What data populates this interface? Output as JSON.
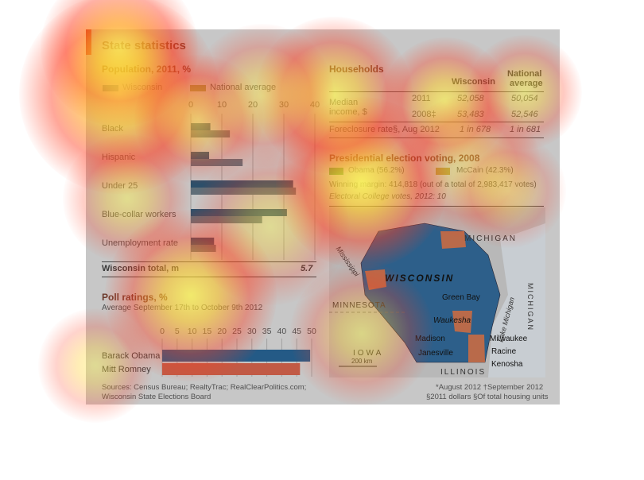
{
  "infographic": {
    "title": "State statistics",
    "sources": "Sources: Census Bureau; RealtyTrac; RealClearPolitics.com;",
    "sources2": "Wisconsin State Elections Board",
    "footnote1": "*August 2012   †September 2012",
    "footnote2": "§2011 dollars   §Of total housing units"
  },
  "population": {
    "title": "Population, 2011, %",
    "legend_wi": "Wisconsin",
    "legend_nat": "National average",
    "total_label": "Wisconsin total, m",
    "total_value": "5.7"
  },
  "poll": {
    "title": "Poll ratings, %",
    "subtitle": "Average September 17th to October 9th 2012"
  },
  "households": {
    "title": "Households",
    "col_wi": "Wisconsin",
    "col_nat_1": "National",
    "col_nat_2": "average",
    "r1_label_1": "Median",
    "r1_label_2": "income, $",
    "r1_year1": "2011",
    "r1_year2": "2008‡",
    "r1_wi1": "52,058",
    "r1_nat1": "50,054",
    "r1_wi2": "53,483",
    "r1_nat2": "52,546",
    "r2_label": "Foreclosure rate§, Aug 2012",
    "r2_wi": "1 in 678",
    "r2_nat": "1 in 681"
  },
  "election": {
    "title": "Presidential election voting, 2008",
    "obama": "Obama (56.2%)",
    "mccain": "McCain (42.3%)",
    "winning": "Winning margin: 414,818 (out of a total of 2,983,417 votes)",
    "ec": "Electoral College votes, 2012: 10"
  },
  "map": {
    "michigan_top": "MICHIGAN",
    "michigan_side": "MICHIGAN",
    "wisconsin": "WISCONSIN",
    "minnesota": "MINNESOTA",
    "iowa": "IOWA",
    "illinois": "ILLINOIS",
    "mississippi": "Mississippi",
    "lake": "Lake Michigan",
    "scale": "200 km",
    "cities": [
      "Green Bay",
      "Waukesha",
      "Madison",
      "Milwaukee",
      "Janesville",
      "Racine",
      "Kenosha"
    ]
  },
  "chart_data": [
    {
      "type": "bar",
      "title": "Population, 2011, %",
      "categories": [
        "Black",
        "Hispanic",
        "Under 25",
        "Blue-collar workers",
        "Unemployment rate"
      ],
      "series": [
        {
          "name": "Wisconsin",
          "values": [
            6.3,
            5.9,
            33,
            31,
            7.5
          ]
        },
        {
          "name": "National average",
          "values": [
            12.6,
            16.7,
            33.9,
            23,
            8.1
          ]
        }
      ],
      "xlim": [
        0,
        40
      ],
      "ticks": [
        0,
        10,
        20,
        30,
        40
      ],
      "orientation": "horizontal",
      "grid": true
    },
    {
      "type": "bar",
      "title": "Poll ratings, %",
      "subtitle": "Average September 17th to October 9th 2012",
      "categories": [
        "Barack Obama",
        "Mitt Romney"
      ],
      "values": [
        49.5,
        46.1
      ],
      "xlim": [
        0,
        50
      ],
      "ticks": [
        0,
        5,
        10,
        15,
        20,
        25,
        30,
        35,
        40,
        45,
        50
      ],
      "orientation": "horizontal"
    }
  ],
  "colors": {
    "wi_bar": "#2d4f6a",
    "nat_bar": "#5f6e78",
    "obama_blue": "#245a86",
    "romney_red": "#c15a45",
    "accent_red": "#c41a1a",
    "heat_yellow": "#fff14a",
    "heat_red": "#ff3020"
  }
}
